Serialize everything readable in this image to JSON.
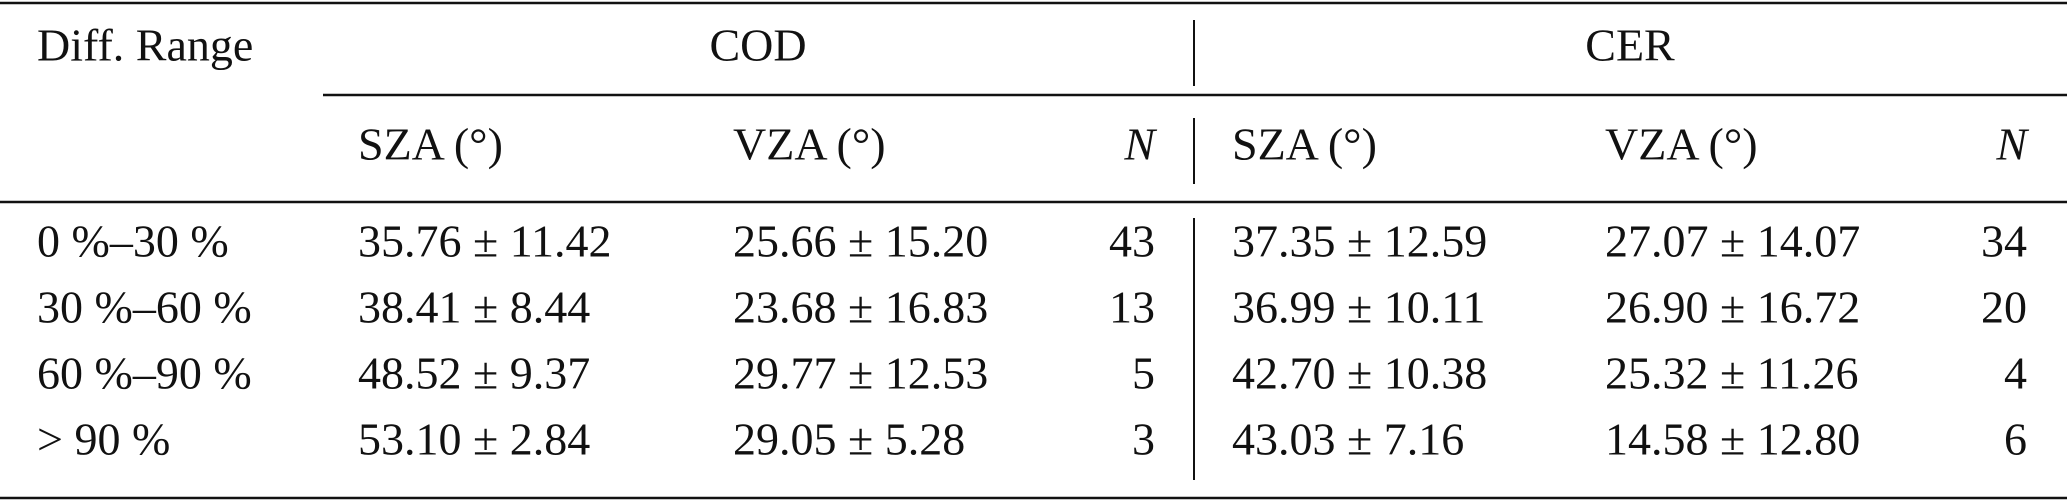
{
  "table": {
    "header": {
      "range": "Diff. Range",
      "groups": [
        "COD",
        "CER"
      ],
      "columns": [
        "SZA (°)",
        "VZA (°)",
        "N",
        "SZA (°)",
        "VZA (°)",
        "N"
      ]
    },
    "rows": [
      [
        "0 %–30 %",
        "35.76 ± 11.42",
        "25.66 ± 15.20",
        "43",
        "37.35 ± 12.59",
        "27.07 ± 14.07",
        "34"
      ],
      [
        "30 %–60 %",
        "38.41 ± 8.44",
        "23.68 ± 16.83",
        "13",
        "36.99 ± 10.11",
        "26.90 ± 16.72",
        "20"
      ],
      [
        "60 %–90 %",
        "48.52 ± 9.37",
        "29.77 ± 12.53",
        "5",
        "42.70 ± 10.38",
        "25.32 ± 11.26",
        "4"
      ],
      [
        "> 90 %",
        "53.10 ± 2.84",
        "29.05 ± 5.28",
        "3",
        "43.03 ± 7.16",
        "14.58 ± 12.80",
        "6"
      ]
    ]
  }
}
